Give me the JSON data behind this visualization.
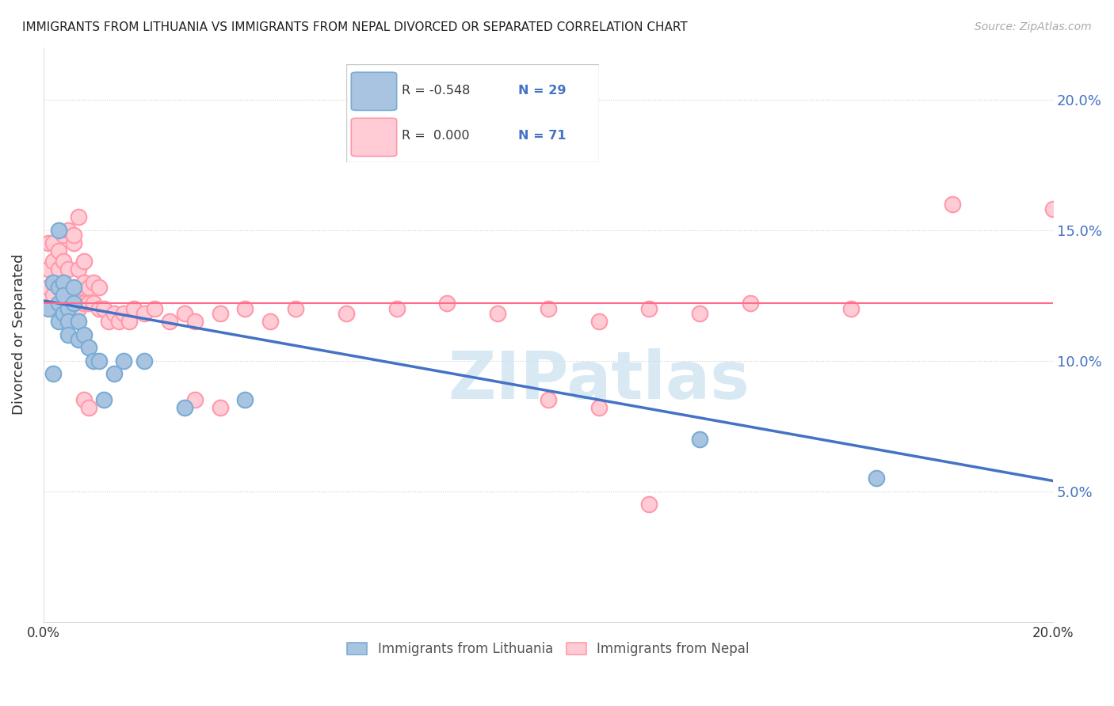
{
  "title": "IMMIGRANTS FROM LITHUANIA VS IMMIGRANTS FROM NEPAL DIVORCED OR SEPARATED CORRELATION CHART",
  "source": "Source: ZipAtlas.com",
  "ylabel": "Divorced or Separated",
  "xlim": [
    0.0,
    0.2
  ],
  "ylim": [
    0.0,
    0.22
  ],
  "yticks": [
    0.05,
    0.1,
    0.15,
    0.2
  ],
  "xticks": [
    0.0,
    0.05,
    0.1,
    0.15,
    0.2
  ],
  "blue_color": "#A8C4E0",
  "blue_edge_color": "#7AACD4",
  "pink_color": "#FFCCD5",
  "pink_edge_color": "#FF99AA",
  "blue_line_color": "#4472C4",
  "pink_line_color": "#FF6B8A",
  "background_color": "#FFFFFF",
  "watermark_text": "ZIPatlas",
  "watermark_color": "#D0E4F0",
  "grid_color": "#CCCCCC",
  "legend_r_blue": "R = -0.548",
  "legend_n_blue": "N = 29",
  "legend_r_pink": "R =  0.000",
  "legend_n_pink": "N = 71",
  "blue_trend_x0": 0.0,
  "blue_trend_y0": 0.123,
  "blue_trend_x1": 0.2,
  "blue_trend_y1": 0.054,
  "pink_trend_y": 0.122,
  "lithuania_x": [
    0.001,
    0.002,
    0.002,
    0.003,
    0.003,
    0.003,
    0.004,
    0.004,
    0.004,
    0.005,
    0.005,
    0.005,
    0.006,
    0.006,
    0.007,
    0.007,
    0.008,
    0.009,
    0.01,
    0.011,
    0.012,
    0.014,
    0.016,
    0.02,
    0.028,
    0.04,
    0.13,
    0.165,
    0.003
  ],
  "lithuania_y": [
    0.12,
    0.095,
    0.13,
    0.128,
    0.122,
    0.115,
    0.118,
    0.13,
    0.125,
    0.12,
    0.115,
    0.11,
    0.128,
    0.122,
    0.115,
    0.108,
    0.11,
    0.105,
    0.1,
    0.1,
    0.085,
    0.095,
    0.1,
    0.1,
    0.082,
    0.085,
    0.07,
    0.055,
    0.15
  ],
  "nepal_x": [
    0.001,
    0.001,
    0.001,
    0.002,
    0.002,
    0.002,
    0.002,
    0.003,
    0.003,
    0.003,
    0.003,
    0.004,
    0.004,
    0.004,
    0.004,
    0.005,
    0.005,
    0.005,
    0.006,
    0.006,
    0.006,
    0.007,
    0.007,
    0.007,
    0.008,
    0.008,
    0.008,
    0.009,
    0.009,
    0.01,
    0.01,
    0.011,
    0.011,
    0.012,
    0.013,
    0.014,
    0.015,
    0.016,
    0.017,
    0.018,
    0.02,
    0.022,
    0.025,
    0.028,
    0.03,
    0.035,
    0.04,
    0.045,
    0.05,
    0.06,
    0.07,
    0.08,
    0.09,
    0.1,
    0.11,
    0.12,
    0.13,
    0.14,
    0.16,
    0.18,
    0.2,
    0.005,
    0.006,
    0.007,
    0.008,
    0.009,
    0.03,
    0.035,
    0.1,
    0.11,
    0.12
  ],
  "nepal_y": [
    0.128,
    0.135,
    0.145,
    0.125,
    0.13,
    0.138,
    0.145,
    0.12,
    0.128,
    0.135,
    0.142,
    0.125,
    0.13,
    0.138,
    0.148,
    0.122,
    0.128,
    0.135,
    0.122,
    0.128,
    0.145,
    0.12,
    0.128,
    0.135,
    0.122,
    0.13,
    0.138,
    0.122,
    0.128,
    0.122,
    0.13,
    0.12,
    0.128,
    0.12,
    0.115,
    0.118,
    0.115,
    0.118,
    0.115,
    0.12,
    0.118,
    0.12,
    0.115,
    0.118,
    0.115,
    0.118,
    0.12,
    0.115,
    0.12,
    0.118,
    0.12,
    0.122,
    0.118,
    0.12,
    0.115,
    0.12,
    0.118,
    0.122,
    0.12,
    0.16,
    0.158,
    0.15,
    0.148,
    0.155,
    0.085,
    0.082,
    0.085,
    0.082,
    0.085,
    0.082,
    0.045
  ]
}
